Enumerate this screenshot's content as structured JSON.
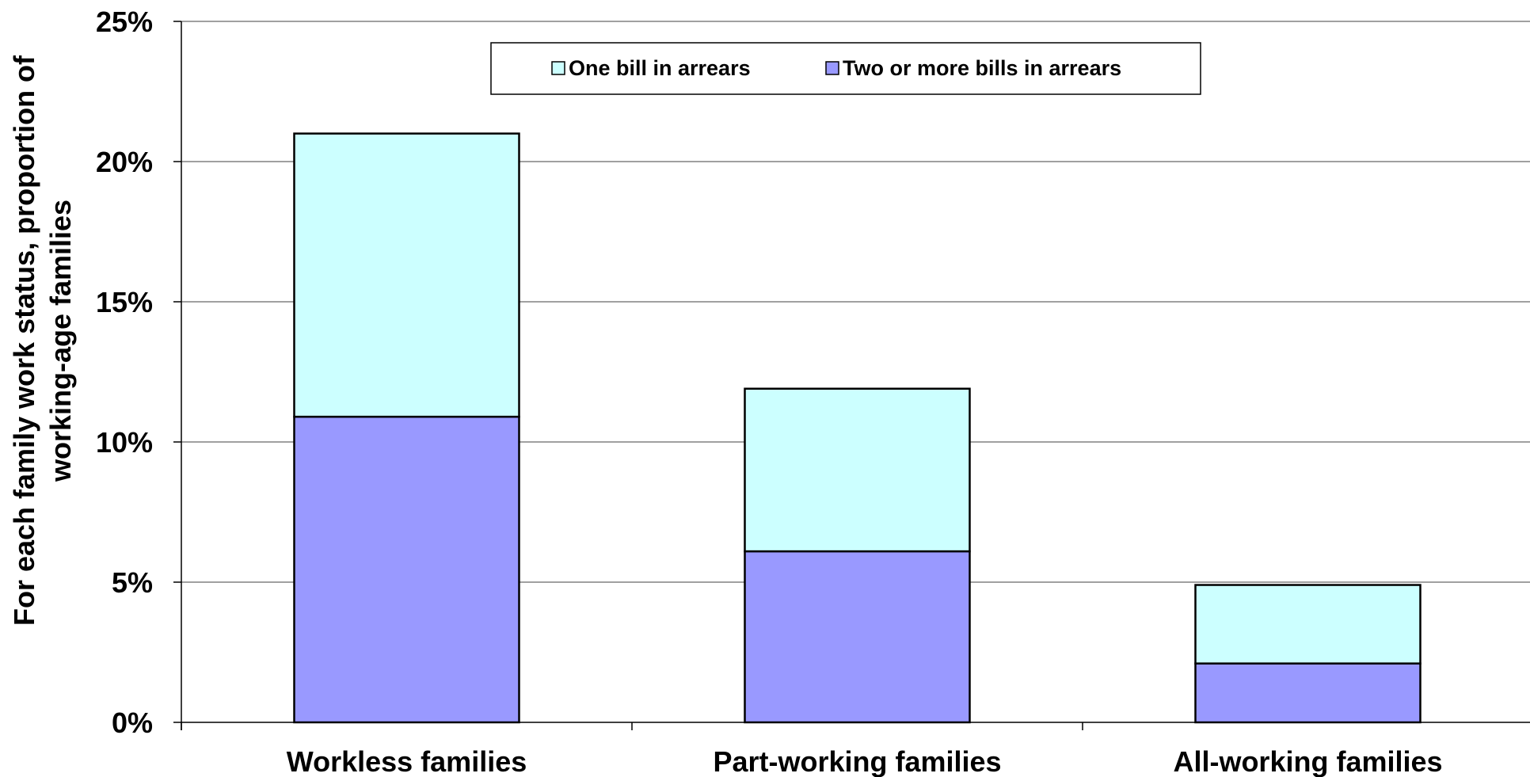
{
  "chart_data": {
    "type": "bar",
    "stacked": true,
    "categories": [
      "Workless families",
      "Part-working families",
      "All-working families"
    ],
    "series": [
      {
        "name": "Two or more bills in arrears",
        "values": [
          10.9,
          6.1,
          2.1
        ],
        "color": "#9999ff"
      },
      {
        "name": "One bill in arrears",
        "values": [
          10.1,
          5.8,
          2.8
        ],
        "color": "#ccffff"
      }
    ],
    "legend_order": [
      1,
      0
    ],
    "ylabel_lines": [
      "For each family work status, proportion of",
      "working-age families"
    ],
    "xlabel": "",
    "ylim": [
      0,
      25
    ],
    "yticks": [
      0,
      5,
      10,
      15,
      20,
      25
    ],
    "ytick_labels": [
      "0%",
      "5%",
      "10%",
      "15%",
      "20%",
      "25%"
    ],
    "grid": true,
    "legend_position": "top-center"
  }
}
